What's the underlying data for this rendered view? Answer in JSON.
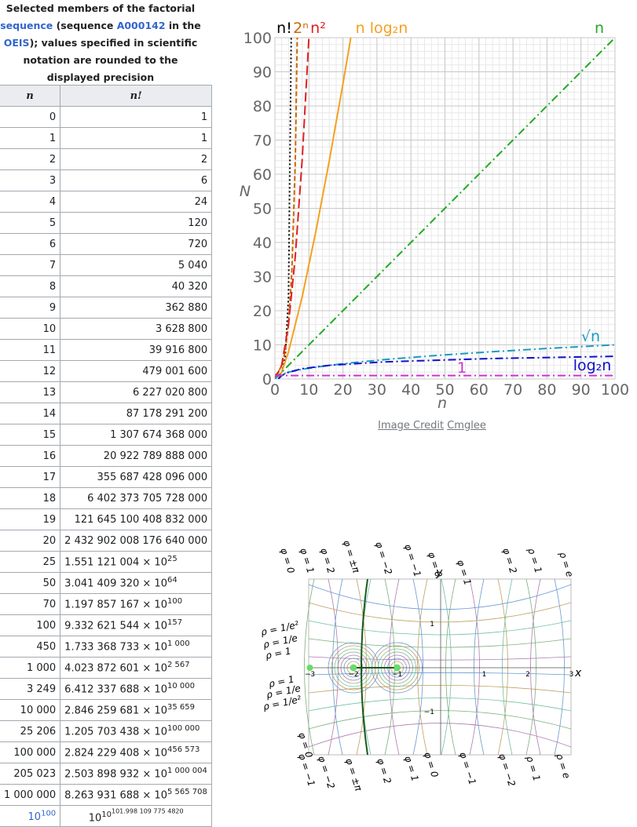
{
  "table": {
    "caption": [
      "Selected members of the factorial ",
      "sequence",
      " (sequence ",
      "A000142",
      " in the ",
      "OEIS",
      "); values specified in scientific notation are rounded to the displayed precision"
    ],
    "headers": [
      "n",
      "n!"
    ],
    "rows": [
      {
        "n": "0",
        "value": "1"
      },
      {
        "n": "1",
        "value": "1"
      },
      {
        "n": "2",
        "value": "2"
      },
      {
        "n": "3",
        "value": "6"
      },
      {
        "n": "4",
        "value": "24"
      },
      {
        "n": "5",
        "value": "120"
      },
      {
        "n": "6",
        "value": "720"
      },
      {
        "n": "7",
        "value": "5 040"
      },
      {
        "n": "8",
        "value": "40 320"
      },
      {
        "n": "9",
        "value": "362 880"
      },
      {
        "n": "10",
        "value": "3 628 800"
      },
      {
        "n": "11",
        "value": "39 916 800"
      },
      {
        "n": "12",
        "value": "479 001 600"
      },
      {
        "n": "13",
        "value": "6 227 020 800"
      },
      {
        "n": "14",
        "value": "87 178 291 200"
      },
      {
        "n": "15",
        "value": "1 307 674 368 000"
      },
      {
        "n": "16",
        "value": "20 922 789 888 000"
      },
      {
        "n": "17",
        "value": "355 687 428 096 000"
      },
      {
        "n": "18",
        "value": "6 402 373 705 728 000"
      },
      {
        "n": "19",
        "value": "121 645 100 408 832 000"
      },
      {
        "n": "20",
        "value": "2 432 902 008 176 640 000"
      },
      {
        "n": "25",
        "mantissa": "1.551 121 004 × 10",
        "exponent": "25"
      },
      {
        "n": "50",
        "mantissa": "3.041 409 320 × 10",
        "exponent": "64"
      },
      {
        "n": "70",
        "mantissa": "1.197 857 167 × 10",
        "exponent": "100"
      },
      {
        "n": "100",
        "mantissa": "9.332 621 544 × 10",
        "exponent": "157"
      },
      {
        "n": "450",
        "mantissa": "1.733 368 733 × 10",
        "exponent": "1 000"
      },
      {
        "n": "1 000",
        "mantissa": "4.023 872 601 × 10",
        "exponent": "2 567"
      },
      {
        "n": "3 249",
        "mantissa": "6.412 337 688 × 10",
        "exponent": "10 000"
      },
      {
        "n": "10 000",
        "mantissa": "2.846 259 681 × 10",
        "exponent": "35 659"
      },
      {
        "n": "25 206",
        "mantissa": "1.205 703 438 × 10",
        "exponent": "100 000"
      },
      {
        "n": "100 000",
        "mantissa": "2.824 229 408 × 10",
        "exponent": "456 573"
      },
      {
        "n": "205 023",
        "mantissa": "2.503 898 932 × 10",
        "exponent": "1 000 004"
      },
      {
        "n": "1 000 000",
        "mantissa": "8.263 931 688 × 10",
        "exponent": "5 565 708"
      },
      {
        "n": "10",
        "n_exponent": "100",
        "mantissa": "10",
        "exponent": "10",
        "exponent2": "101.998 109 775 4820"
      }
    ]
  },
  "chart_data": {
    "type": "line",
    "x_label": "n",
    "y_label": "N",
    "xlim": [
      0,
      100
    ],
    "ylim": [
      0,
      100
    ],
    "xticks": [
      0,
      10,
      20,
      30,
      40,
      50,
      60,
      70,
      80,
      90,
      100
    ],
    "yticks": [
      0,
      10,
      20,
      30,
      40,
      50,
      60,
      70,
      80,
      90,
      100
    ],
    "grid": true,
    "series": [
      {
        "name": "n!",
        "color": "#000000",
        "dash": "2,3",
        "x": [
          0,
          1,
          2,
          3,
          4,
          5
        ],
        "values": [
          1,
          1,
          2,
          6,
          24,
          120
        ]
      },
      {
        "name": "2ⁿ",
        "color": "#cc6600",
        "dash": "6,3",
        "x": [
          0,
          1,
          2,
          3,
          4,
          5,
          6,
          7
        ],
        "values": [
          1,
          2,
          4,
          8,
          16,
          32,
          64,
          128
        ]
      },
      {
        "name": "n²",
        "color": "#e02020",
        "dash": "12,5",
        "x": [
          0,
          2,
          4,
          6,
          8,
          10,
          11
        ],
        "values": [
          0,
          4,
          16,
          36,
          64,
          100,
          121
        ]
      },
      {
        "name": "n log₂n",
        "color": "#f5a020",
        "dash": "none",
        "x": [
          1,
          2,
          4,
          8,
          12,
          16,
          20,
          23
        ],
        "values": [
          0,
          2,
          8,
          24,
          43.02,
          64,
          86.44,
          104.04
        ]
      },
      {
        "name": "n",
        "color": "#22aa22",
        "dash": "10,4,2,4",
        "x": [
          0,
          100
        ],
        "values": [
          0,
          100
        ]
      },
      {
        "name": "√n",
        "color": "#1a9ac0",
        "dash": "10,4,2,4",
        "x": [
          0,
          1,
          4,
          9,
          16,
          25,
          36,
          49,
          64,
          81,
          100
        ],
        "values": [
          0,
          1,
          2,
          3,
          4,
          5,
          6,
          7,
          8,
          9,
          10
        ]
      },
      {
        "name": "log₂n",
        "color": "#1010cc",
        "dash": "10,4,2,4",
        "x": [
          1,
          2,
          4,
          8,
          16,
          32,
          64,
          100
        ],
        "values": [
          0,
          1,
          2,
          3,
          4,
          5,
          6,
          6.64
        ]
      },
      {
        "name": "1",
        "color": "#cc33cc",
        "dash": "10,4,2,4",
        "x": [
          0,
          100
        ],
        "values": [
          1,
          1
        ]
      }
    ]
  },
  "credit": {
    "label": "Image Credit",
    "author": "Cmglee"
  },
  "diagram": {
    "axis_x": "x",
    "axis_y": "y",
    "x_ticks": [
      "−3",
      "−2",
      "−1",
      "1",
      "2",
      "3"
    ],
    "y_ticks": [
      "1",
      "−1"
    ],
    "top_labels": [
      "φ = 0",
      "φ = 1",
      "φ = 2",
      "φ = ±π",
      "φ = −2",
      "φ = −1",
      "φ = 0",
      "φ = 1",
      "φ = 2",
      "ρ = 1",
      "ρ = e"
    ],
    "left_labels": [
      "ρ = 1/e²",
      "ρ = 1/e",
      "ρ = 1",
      "ρ = 1",
      "ρ = 1/e",
      "ρ = 1/e²"
    ],
    "bottom_labels": [
      "φ = 0",
      "φ = −1",
      "φ = −2",
      "φ = ±π",
      "φ = 2",
      "φ = 1",
      "φ = 0",
      "φ = −1",
      "φ = −2",
      "ρ = 1",
      "ρ = e"
    ]
  }
}
